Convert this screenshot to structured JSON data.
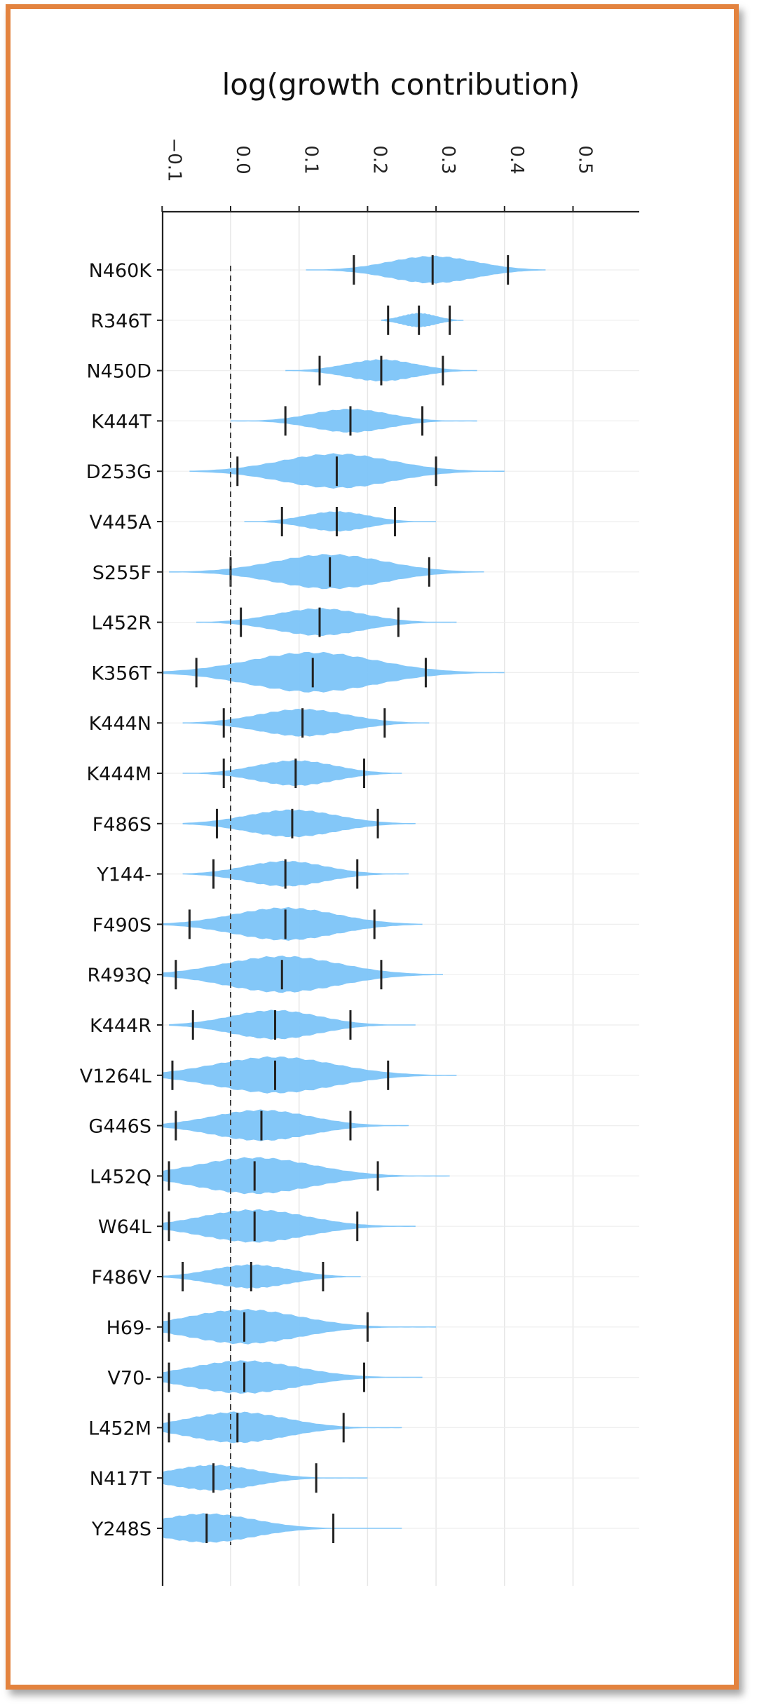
{
  "chart_data": {
    "type": "violin",
    "title": "log(growth contribution)",
    "xlabel": "log(growth contribution)",
    "ylabel": "",
    "xlim": [
      -0.1,
      0.7
    ],
    "x_ticks": [
      -0.1,
      0.0,
      0.1,
      0.2,
      0.3,
      0.4,
      0.5
    ],
    "x_tick_labels": [
      "−0.1",
      "0.0",
      "0.1",
      "0.2",
      "0.3",
      "0.4",
      "0.5"
    ],
    "axis_position": "top",
    "reference_line": {
      "x": 0.0,
      "style": "dashed"
    },
    "grid": true,
    "violin_color": "#7cc4f8",
    "marker_color": "#222222",
    "series": [
      {
        "label": "N460K",
        "lower": 0.18,
        "median": 0.295,
        "upper": 0.405,
        "tail_min": 0.11,
        "tail_max": 0.46,
        "spread": 0.075
      },
      {
        "label": "R346T",
        "lower": 0.23,
        "median": 0.275,
        "upper": 0.32,
        "tail_min": 0.22,
        "tail_max": 0.34,
        "spread": 0.03
      },
      {
        "label": "N450D",
        "lower": 0.13,
        "median": 0.22,
        "upper": 0.31,
        "tail_min": 0.08,
        "tail_max": 0.36,
        "spread": 0.06
      },
      {
        "label": "K444T",
        "lower": 0.08,
        "median": 0.175,
        "upper": 0.28,
        "tail_min": 0.0,
        "tail_max": 0.36,
        "spread": 0.065
      },
      {
        "label": "D253G",
        "lower": 0.01,
        "median": 0.155,
        "upper": 0.3,
        "tail_min": -0.06,
        "tail_max": 0.4,
        "spread": 0.095
      },
      {
        "label": "V445A",
        "lower": 0.075,
        "median": 0.155,
        "upper": 0.24,
        "tail_min": 0.02,
        "tail_max": 0.3,
        "spread": 0.055
      },
      {
        "label": "S255F",
        "lower": 0.0,
        "median": 0.145,
        "upper": 0.29,
        "tail_min": -0.09,
        "tail_max": 0.37,
        "spread": 0.095
      },
      {
        "label": "L452R",
        "lower": 0.015,
        "median": 0.13,
        "upper": 0.245,
        "tail_min": -0.05,
        "tail_max": 0.33,
        "spread": 0.075
      },
      {
        "label": "K356T",
        "lower": -0.05,
        "median": 0.12,
        "upper": 0.285,
        "tail_min": -0.1,
        "tail_max": 0.4,
        "spread": 0.11
      },
      {
        "label": "K444N",
        "lower": -0.01,
        "median": 0.105,
        "upper": 0.225,
        "tail_min": -0.07,
        "tail_max": 0.29,
        "spread": 0.075
      },
      {
        "label": "K444M",
        "lower": -0.01,
        "median": 0.095,
        "upper": 0.195,
        "tail_min": -0.07,
        "tail_max": 0.25,
        "spread": 0.07
      },
      {
        "label": "F486S",
        "lower": -0.02,
        "median": 0.09,
        "upper": 0.215,
        "tail_min": -0.07,
        "tail_max": 0.27,
        "spread": 0.075
      },
      {
        "label": "Y144-",
        "lower": -0.025,
        "median": 0.08,
        "upper": 0.185,
        "tail_min": -0.07,
        "tail_max": 0.26,
        "spread": 0.07
      },
      {
        "label": "F490S",
        "lower": -0.06,
        "median": 0.08,
        "upper": 0.21,
        "tail_min": -0.1,
        "tail_max": 0.28,
        "spread": 0.09
      },
      {
        "label": "R493Q",
        "lower": -0.08,
        "median": 0.075,
        "upper": 0.22,
        "tail_min": -0.1,
        "tail_max": 0.31,
        "spread": 0.1
      },
      {
        "label": "K444R",
        "lower": -0.055,
        "median": 0.065,
        "upper": 0.175,
        "tail_min": -0.09,
        "tail_max": 0.27,
        "spread": 0.08
      },
      {
        "label": "V1264L",
        "lower": -0.085,
        "median": 0.065,
        "upper": 0.23,
        "tail_min": -0.1,
        "tail_max": 0.33,
        "spread": 0.1
      },
      {
        "label": "G446S",
        "lower": -0.08,
        "median": 0.045,
        "upper": 0.175,
        "tail_min": -0.1,
        "tail_max": 0.26,
        "spread": 0.085
      },
      {
        "label": "L452Q",
        "lower": -0.09,
        "median": 0.035,
        "upper": 0.215,
        "tail_min": -0.1,
        "tail_max": 0.32,
        "spread": 0.1
      },
      {
        "label": "W64L",
        "lower": -0.09,
        "median": 0.035,
        "upper": 0.185,
        "tail_min": -0.1,
        "tail_max": 0.27,
        "spread": 0.09
      },
      {
        "label": "F486V",
        "lower": -0.07,
        "median": 0.03,
        "upper": 0.135,
        "tail_min": -0.1,
        "tail_max": 0.19,
        "spread": 0.065
      },
      {
        "label": "H69-",
        "lower": -0.09,
        "median": 0.02,
        "upper": 0.2,
        "tail_min": -0.1,
        "tail_max": 0.3,
        "spread": 0.095
      },
      {
        "label": "V70-",
        "lower": -0.09,
        "median": 0.02,
        "upper": 0.195,
        "tail_min": -0.1,
        "tail_max": 0.28,
        "spread": 0.09
      },
      {
        "label": "L452M",
        "lower": -0.09,
        "median": 0.01,
        "upper": 0.165,
        "tail_min": -0.1,
        "tail_max": 0.25,
        "spread": 0.085
      },
      {
        "label": "N417T",
        "lower": -0.1,
        "median": -0.025,
        "upper": 0.125,
        "tail_min": -0.1,
        "tail_max": 0.2,
        "spread": 0.07
      },
      {
        "label": "Y248S",
        "lower": -0.1,
        "median": -0.035,
        "upper": 0.15,
        "tail_min": -0.1,
        "tail_max": 0.25,
        "spread": 0.08
      }
    ]
  }
}
